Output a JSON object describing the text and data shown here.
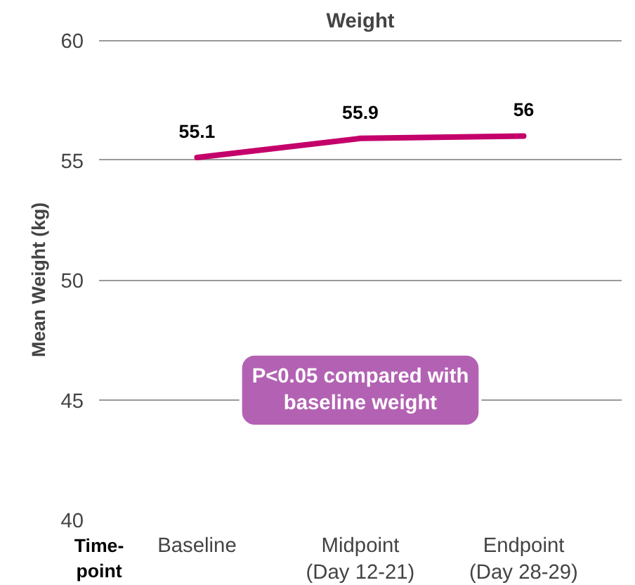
{
  "chart_data": {
    "type": "line",
    "title": "Weight",
    "xlabel": "Time-point",
    "ylabel": "Mean Weight (kg)",
    "categories": [
      "Baseline",
      "Midpoint\n(Day 12-21)",
      "Endpoint\n(Day 28-29)"
    ],
    "series": [
      {
        "color": "#c4006a",
        "values": [
          55.1,
          55.9,
          56
        ]
      }
    ],
    "ylim": [
      40,
      60
    ],
    "yticks": [
      40,
      45,
      50,
      55,
      60
    ],
    "grid": "y",
    "data_labels": true,
    "marker": "none",
    "line_style": "solid",
    "annotations": [
      "P<0.05 compared with baseline weight"
    ]
  }
}
